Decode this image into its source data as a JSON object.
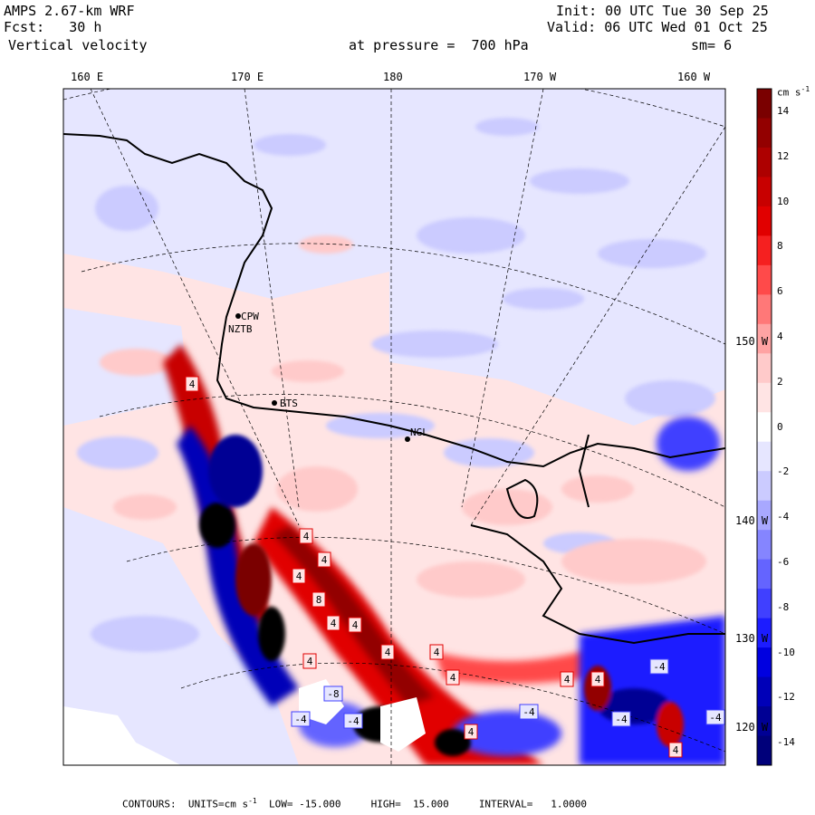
{
  "header": {
    "model": "AMPS 2.67-km WRF",
    "forecast": "Fcst:   30 h",
    "variable": "Vertical velocity",
    "init": "Init: 00 UTC Tue 30 Sep 25",
    "valid": "Valid: 06 UTC Wed 01 Oct 25",
    "pressure": "at pressure =  700 hPa",
    "smoothing": "sm= 6"
  },
  "longitude_labels": [
    "160 E",
    "170 E",
    "180",
    "170 W",
    "160 W"
  ],
  "latitude_labels": [
    "150 W",
    "140 W",
    "130 W",
    "120 W"
  ],
  "station_labels": [
    "CPW",
    "NZTB",
    "BTS",
    "NGL"
  ],
  "colorbar": {
    "unit_label": "cm s",
    "unit_exp": "-1",
    "tick_labels": [
      "14",
      "12",
      "10",
      "8",
      "6",
      "4",
      "2",
      "0",
      "-2",
      "-4",
      "-6",
      "-8",
      "-10",
      "-12",
      "-14"
    ],
    "colors": [
      "#7a0000",
      "#930000",
      "#ad0000",
      "#c80000",
      "#e10000",
      "#f52020",
      "#ff4a4a",
      "#ff7878",
      "#ffa3a3",
      "#ffcaca",
      "#ffe4e4",
      "#ffffff",
      "#e6e6ff",
      "#cbcbff",
      "#a8a8ff",
      "#8585ff",
      "#6464ff",
      "#4040ff",
      "#1c1cff",
      "#0000e0",
      "#0000b8",
      "#000094",
      "#00007a"
    ]
  },
  "contour_labels": [
    "4",
    "4",
    "4",
    "8",
    "4",
    "4",
    "4",
    "4",
    "4",
    "4",
    "-8",
    "-4",
    "-4",
    "4",
    "4",
    "-4",
    "-4",
    "-4",
    "4",
    "4",
    "-4",
    "4"
  ],
  "footer": {
    "contours": "CONTOURS:",
    "units_prefix": "UNITS=cm s",
    "units_exp": "-1",
    "low": "LOW= -15.000",
    "high": "HIGH=  15.000",
    "interval": "INTERVAL=   1.0000"
  }
}
